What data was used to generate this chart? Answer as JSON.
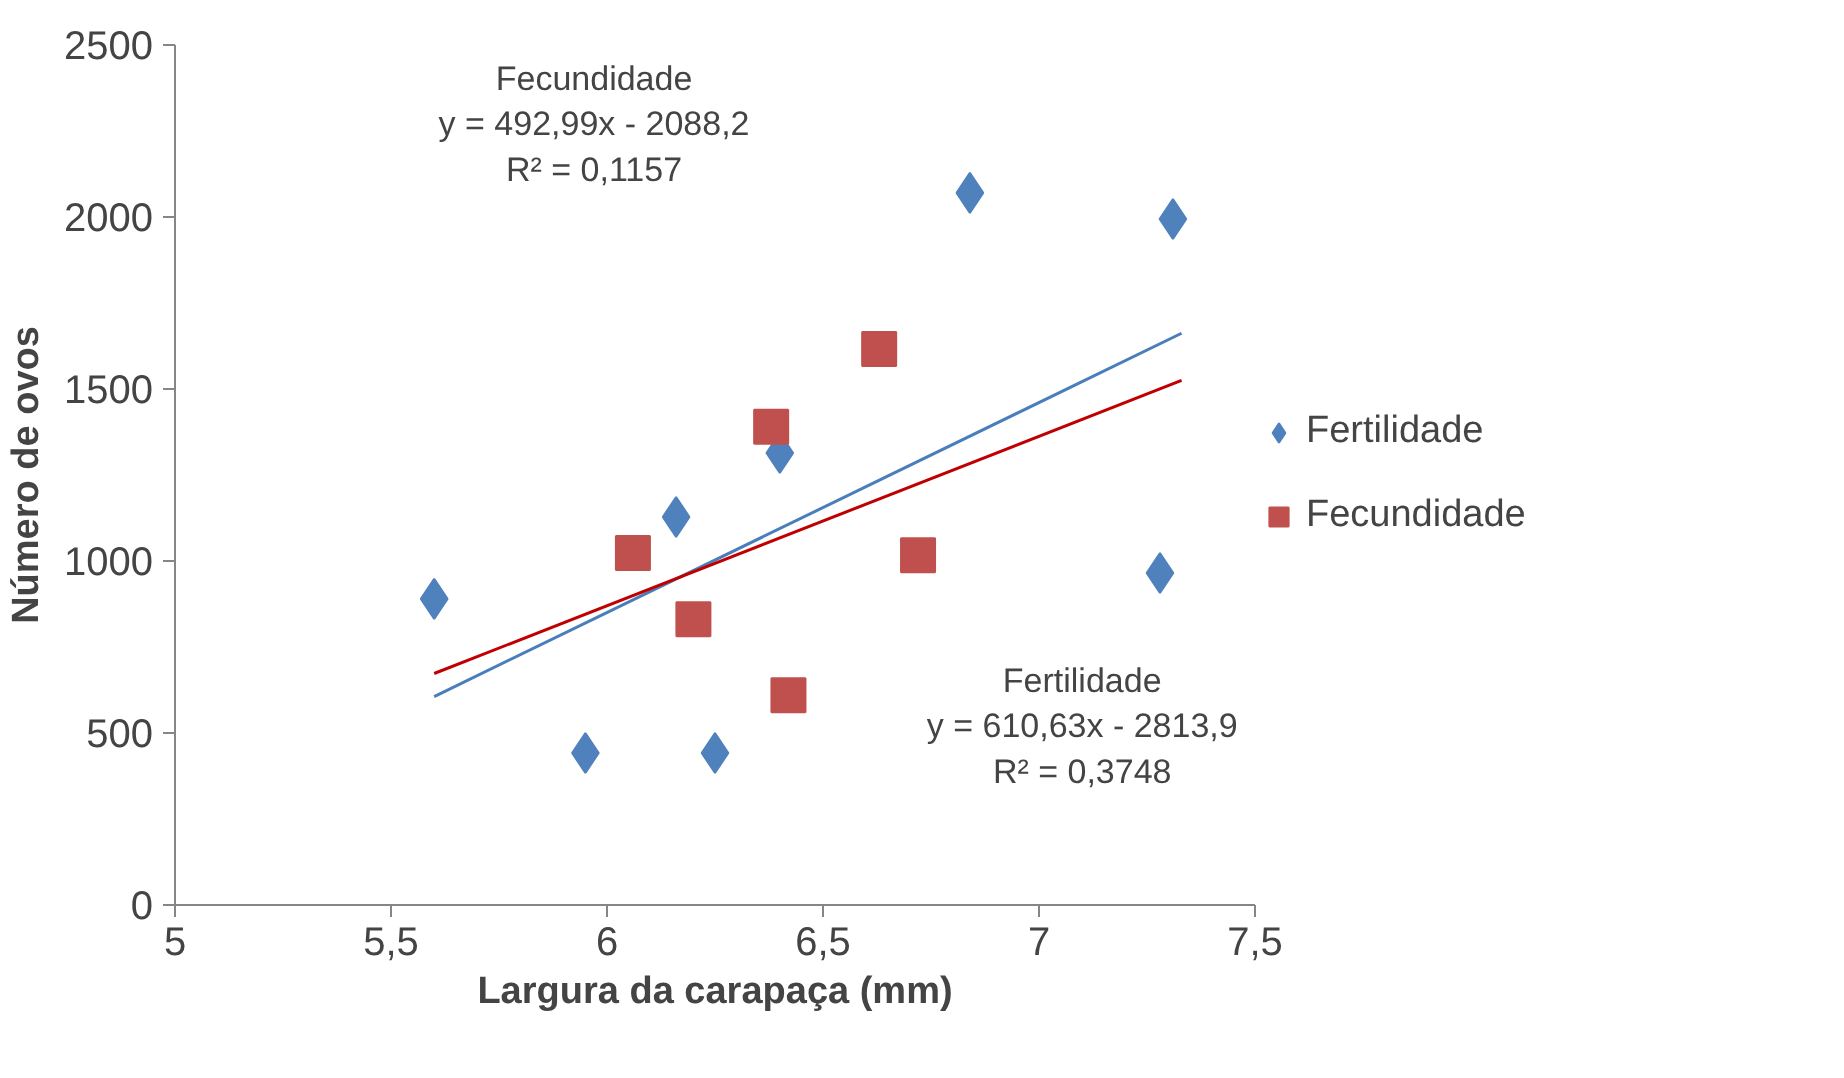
{
  "chart_data": {
    "type": "scatter",
    "xlabel": "Largura da carapaça (mm)",
    "ylabel": "Número de ovos",
    "xlim": [
      5,
      7.5
    ],
    "xticks": [
      5,
      {
        "value": 5.5,
        "label": "5,5"
      },
      6,
      {
        "value": 6.5,
        "label": "6,5"
      },
      7,
      {
        "value": 7.5,
        "label": "7,5"
      }
    ],
    "ylim": [
      0,
      2500
    ],
    "yticks": [
      0,
      500,
      1000,
      1500,
      2000,
      2500
    ],
    "grid": false,
    "legend": "right",
    "series": [
      {
        "name": "Fertilidade",
        "color": "#4f81bd",
        "marker": "diamond",
        "x": [
          5.6,
          5.95,
          6.16,
          6.25,
          6.4,
          6.84,
          7.31,
          7.28
        ],
        "values": [
          890,
          442,
          1128,
          442,
          1314,
          2070,
          1994,
          965
        ]
      },
      {
        "name": "Fecundidade",
        "color": "#c0504d",
        "marker": "square",
        "x": [
          6.06,
          6.2,
          6.38,
          6.42,
          6.63,
          6.72
        ],
        "values": [
          1023,
          831,
          1390,
          610,
          1616,
          1017
        ]
      },
      {
        "type": "line",
        "color": "#4a7ebb",
        "marker": "none",
        "x": [
          5.6,
          7.33
        ],
        "values": [
          606,
          1662
        ]
      },
      {
        "type": "line",
        "color": "#c00000",
        "marker": "none",
        "x": [
          5.6,
          7.33
        ],
        "values": [
          673,
          1525
        ]
      }
    ],
    "annotations": [
      "Fecundidade\ny = 492,99x - 2088,2\nR² = 0,1157",
      "Fertilidade\ny = 610,63x - 2813,9\nR² = 0,3748"
    ]
  }
}
